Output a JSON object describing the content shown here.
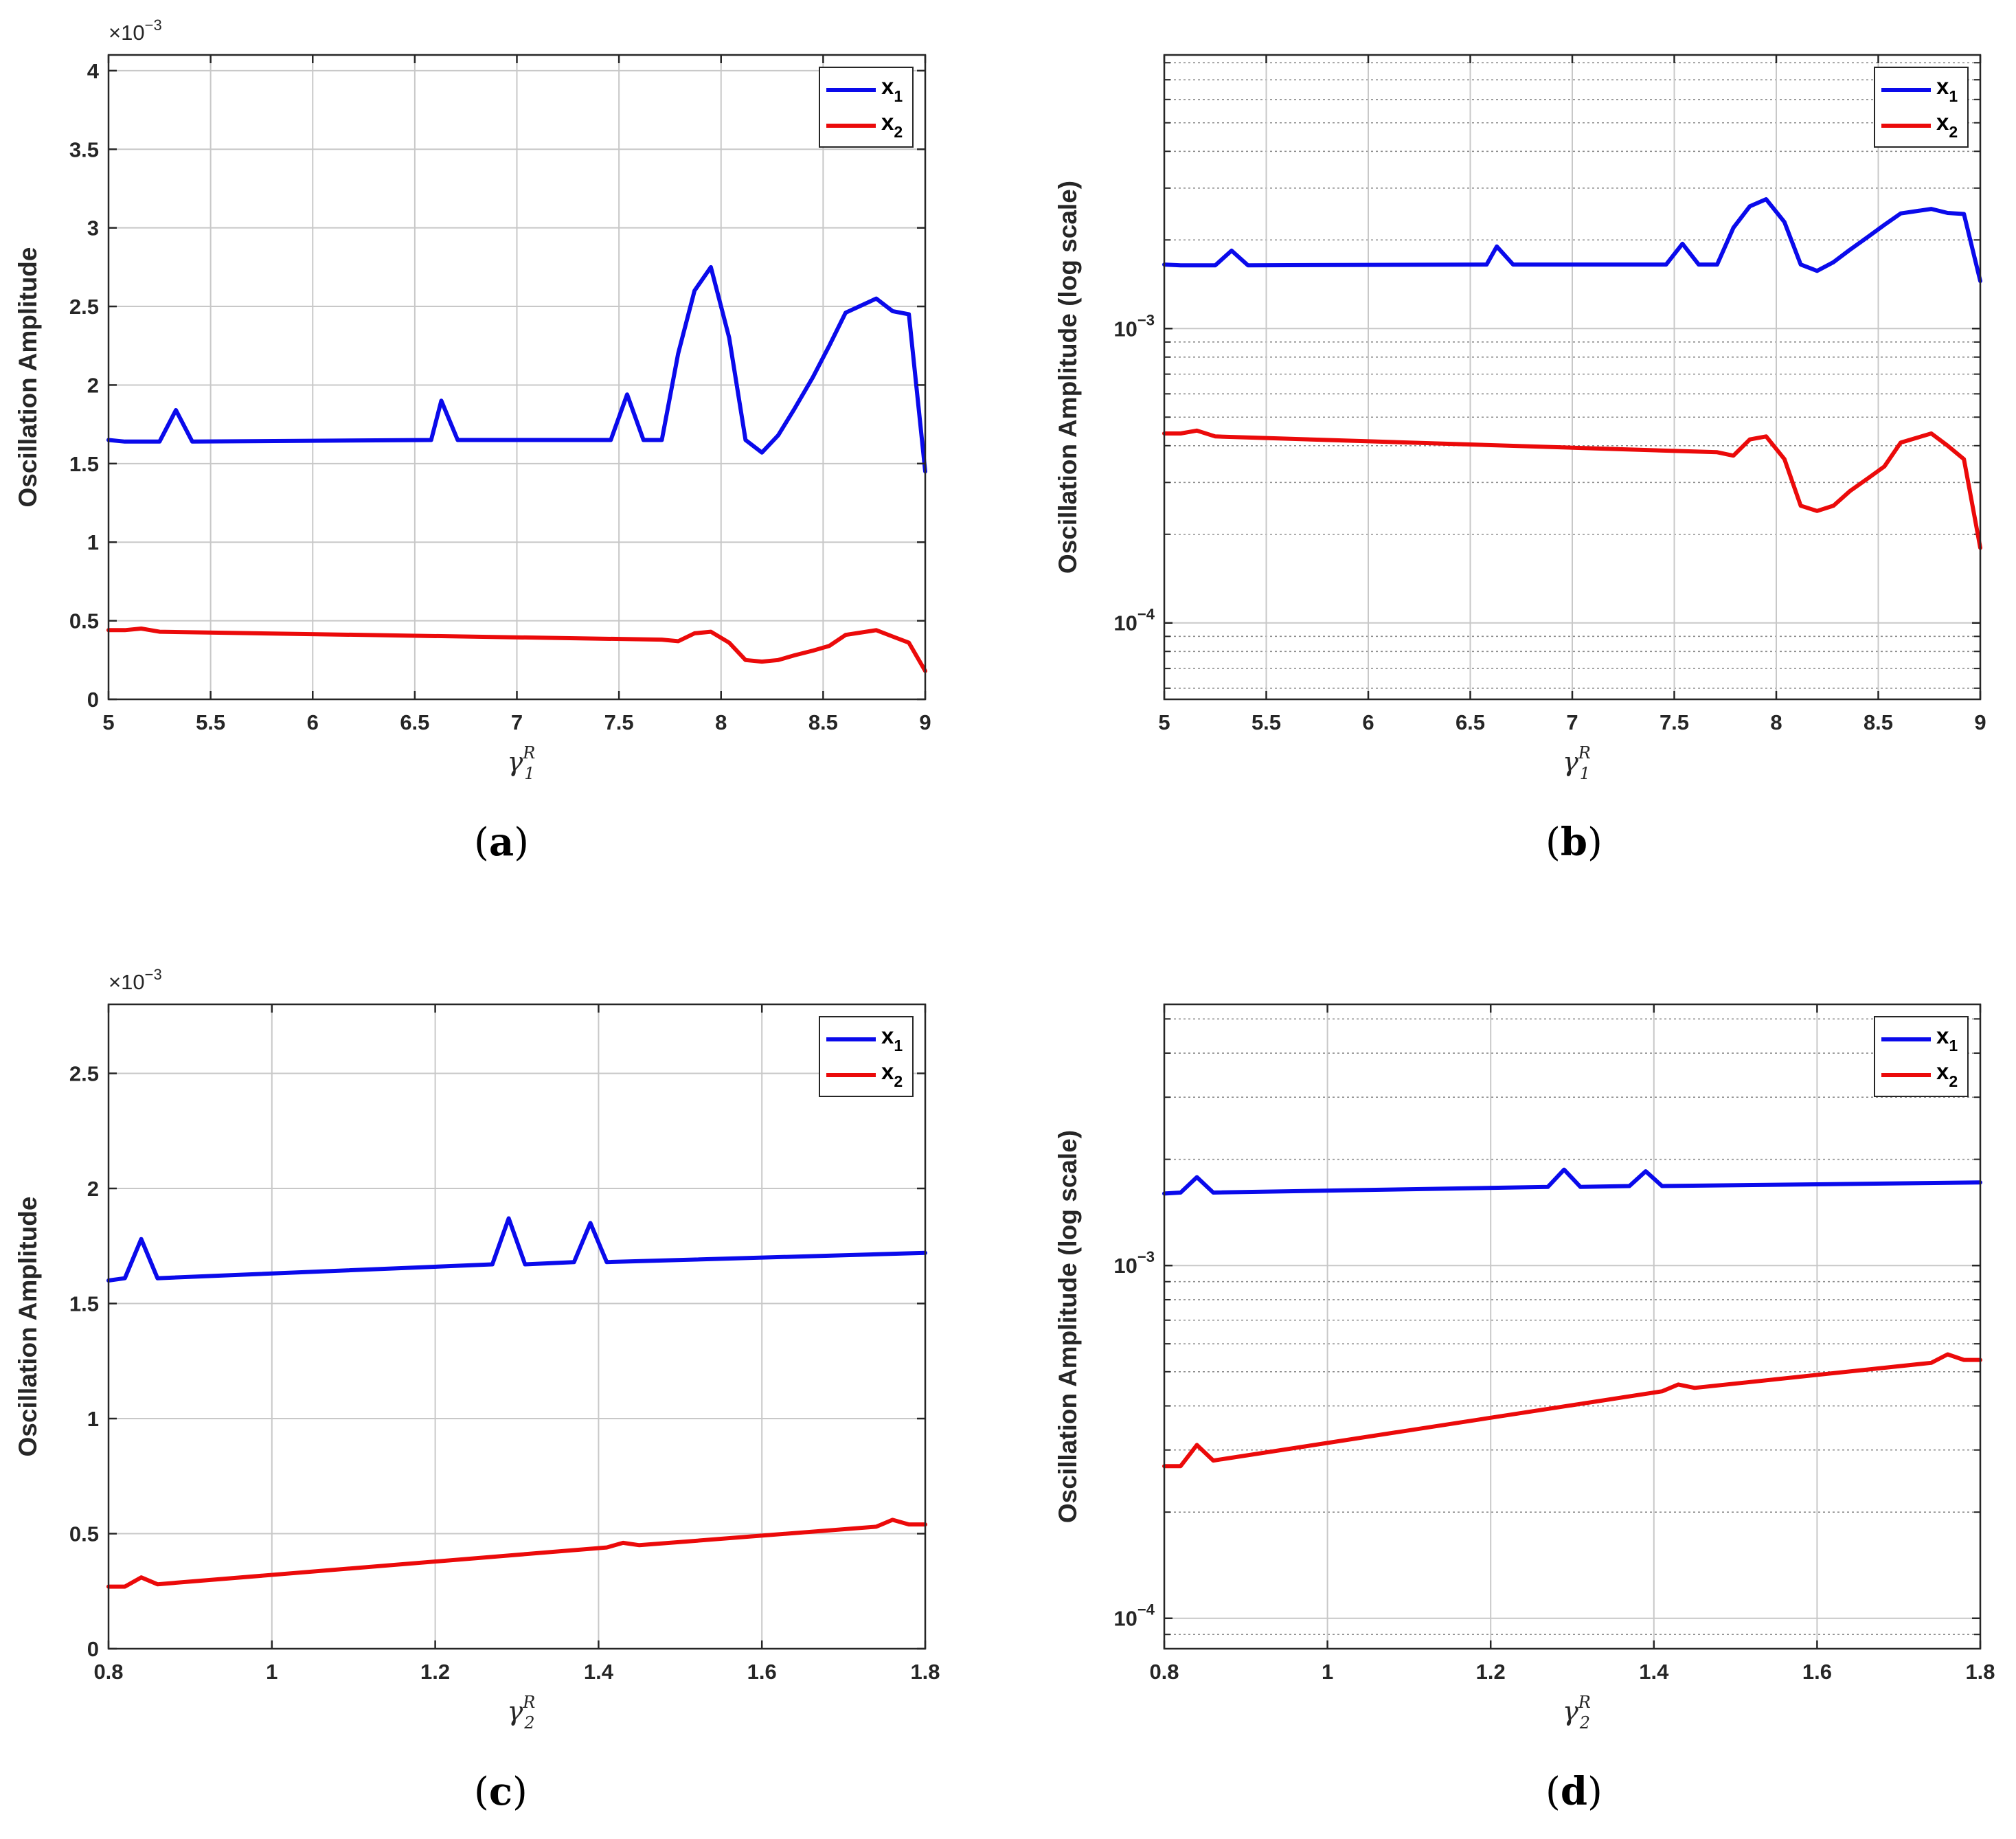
{
  "colors": {
    "x1": "#0a0aeb",
    "x2": "#eb0a0a",
    "grid": "#c8c8c8",
    "minor_grid": "#8c8c8c",
    "axis": "#262626"
  },
  "chart_data": [
    {
      "id": "a",
      "type": "line",
      "caption_prefix": "(",
      "caption_letter": "a",
      "caption_suffix": ")",
      "ylabel": "Oscillation Amplitude",
      "xlabel_base": "γ",
      "xlabel_sup": "R",
      "xlabel_sub": "1",
      "yscale": "linear",
      "exponent_prefix": "×10",
      "exponent_power": "−3",
      "xlim": [
        5,
        9
      ],
      "ylim": [
        0,
        4.1
      ],
      "xticks": [
        5,
        5.5,
        6,
        6.5,
        7,
        7.5,
        8,
        8.5,
        9
      ],
      "xticklabels": [
        "5",
        "5.5",
        "6",
        "6.5",
        "7",
        "7.5",
        "8",
        "8.5",
        "9"
      ],
      "yticks": [
        0,
        0.5,
        1,
        1.5,
        2,
        2.5,
        3,
        3.5,
        4
      ],
      "yticklabels": [
        "0",
        "0.5",
        "1",
        "1.5",
        "2",
        "2.5",
        "3",
        "3.5",
        "4"
      ],
      "minor_yticks": [],
      "grid": true,
      "legend_position": "top-right",
      "series": [
        {
          "name_base": "x",
          "name_sub": "1",
          "color_key": "x1",
          "x": [
            5.0,
            5.08,
            5.25,
            5.33,
            5.41,
            6.58,
            6.63,
            6.71,
            7.46,
            7.54,
            7.62,
            7.71,
            7.79,
            7.87,
            7.95,
            8.04,
            8.12,
            8.2,
            8.28,
            8.36,
            8.45,
            8.53,
            8.61,
            8.76,
            8.84,
            8.92,
            9.0
          ],
          "y": [
            1.65,
            1.64,
            1.64,
            1.84,
            1.64,
            1.65,
            1.9,
            1.65,
            1.65,
            1.94,
            1.65,
            1.65,
            2.2,
            2.6,
            2.75,
            2.3,
            1.65,
            1.57,
            1.68,
            1.85,
            2.05,
            2.25,
            2.46,
            2.55,
            2.47,
            2.45,
            1.45
          ]
        },
        {
          "name_base": "x",
          "name_sub": "2",
          "color_key": "x2",
          "x": [
            5.0,
            5.08,
            5.16,
            5.25,
            7.71,
            7.79,
            7.87,
            7.95,
            8.04,
            8.12,
            8.2,
            8.28,
            8.36,
            8.45,
            8.53,
            8.61,
            8.76,
            8.84,
            8.92,
            9.0
          ],
          "y": [
            0.44,
            0.44,
            0.45,
            0.43,
            0.38,
            0.37,
            0.42,
            0.43,
            0.36,
            0.25,
            0.24,
            0.25,
            0.28,
            0.31,
            0.34,
            0.41,
            0.44,
            0.4,
            0.36,
            0.18
          ]
        }
      ]
    },
    {
      "id": "b",
      "type": "line",
      "caption_prefix": "(",
      "caption_letter": "b",
      "caption_suffix": ")",
      "ylabel": "Oscillation Amplitude (log scale)",
      "xlabel_base": "γ",
      "xlabel_sup": "R",
      "xlabel_sub": "1",
      "yscale": "log",
      "exponent_prefix": "",
      "exponent_power": "",
      "xlim": [
        5,
        9
      ],
      "ylim": [
        5.5e-05,
        0.0085
      ],
      "xticks": [
        5,
        5.5,
        6,
        6.5,
        7,
        7.5,
        8,
        8.5,
        9
      ],
      "xticklabels": [
        "5",
        "5.5",
        "6",
        "6.5",
        "7",
        "7.5",
        "8",
        "8.5",
        "9"
      ],
      "yticks": [
        0.0001,
        0.001
      ],
      "yticklabels": [
        [
          "10",
          "−4"
        ],
        [
          "10",
          "−3"
        ]
      ],
      "minor_yticks": [
        6e-05,
        7e-05,
        8e-05,
        9e-05,
        0.0002,
        0.0003,
        0.0004,
        0.0005,
        0.0006,
        0.0007,
        0.0008,
        0.0009,
        0.002,
        0.003,
        0.004,
        0.005,
        0.006,
        0.007,
        0.008
      ],
      "grid": true,
      "legend_position": "top-right",
      "series": [
        {
          "name_base": "x",
          "name_sub": "1",
          "color_key": "x1",
          "x": [
            5.0,
            5.08,
            5.25,
            5.33,
            5.41,
            6.58,
            6.63,
            6.71,
            7.46,
            7.54,
            7.62,
            7.71,
            7.79,
            7.87,
            7.95,
            8.04,
            8.12,
            8.2,
            8.28,
            8.36,
            8.45,
            8.53,
            8.61,
            8.76,
            8.84,
            8.92,
            9.0
          ],
          "y": [
            0.00165,
            0.00164,
            0.00164,
            0.00184,
            0.00164,
            0.00165,
            0.0019,
            0.00165,
            0.00165,
            0.00194,
            0.00165,
            0.00165,
            0.0022,
            0.0026,
            0.00275,
            0.0023,
            0.00165,
            0.00157,
            0.00168,
            0.00185,
            0.00205,
            0.00225,
            0.00246,
            0.00255,
            0.00247,
            0.00245,
            0.00145
          ]
        },
        {
          "name_base": "x",
          "name_sub": "2",
          "color_key": "x2",
          "x": [
            5.0,
            5.08,
            5.16,
            5.25,
            7.71,
            7.79,
            7.87,
            7.95,
            8.04,
            8.12,
            8.2,
            8.28,
            8.36,
            8.45,
            8.53,
            8.61,
            8.76,
            8.84,
            8.92,
            9.0
          ],
          "y": [
            0.00044,
            0.00044,
            0.00045,
            0.00043,
            0.00038,
            0.00037,
            0.00042,
            0.00043,
            0.00036,
            0.00025,
            0.00024,
            0.00025,
            0.00028,
            0.00031,
            0.00034,
            0.00041,
            0.00044,
            0.0004,
            0.00036,
            0.00018
          ]
        }
      ]
    },
    {
      "id": "c",
      "type": "line",
      "caption_prefix": "(",
      "caption_letter": "c",
      "caption_suffix": ")",
      "ylabel": "Oscillation Amplitude",
      "xlabel_base": "γ",
      "xlabel_sup": "R",
      "xlabel_sub": "2",
      "yscale": "linear",
      "exponent_prefix": "×10",
      "exponent_power": "−3",
      "xlim": [
        0.8,
        1.8
      ],
      "ylim": [
        0,
        2.8
      ],
      "xticks": [
        0.8,
        1.0,
        1.2,
        1.4,
        1.6,
        1.8
      ],
      "xticklabels": [
        "0.8",
        "1",
        "1.2",
        "1.4",
        "1.6",
        "1.8"
      ],
      "yticks": [
        0,
        0.5,
        1,
        1.5,
        2,
        2.5
      ],
      "yticklabels": [
        "0",
        "0.5",
        "1",
        "1.5",
        "2",
        "2.5"
      ],
      "minor_yticks": [],
      "grid": true,
      "legend_position": "top-right",
      "series": [
        {
          "name_base": "x",
          "name_sub": "1",
          "color_key": "x1",
          "x": [
            0.8,
            0.82,
            0.84,
            0.86,
            1.27,
            1.29,
            1.31,
            1.37,
            1.39,
            1.41,
            1.8
          ],
          "y": [
            1.6,
            1.61,
            1.78,
            1.61,
            1.67,
            1.87,
            1.67,
            1.68,
            1.85,
            1.68,
            1.72
          ]
        },
        {
          "name_base": "x",
          "name_sub": "2",
          "color_key": "x2",
          "x": [
            0.8,
            0.82,
            0.84,
            0.86,
            1.41,
            1.43,
            1.45,
            1.74,
            1.76,
            1.78,
            1.8
          ],
          "y": [
            0.27,
            0.27,
            0.31,
            0.28,
            0.44,
            0.46,
            0.45,
            0.53,
            0.56,
            0.54,
            0.54
          ]
        }
      ]
    },
    {
      "id": "d",
      "type": "line",
      "caption_prefix": "(",
      "caption_letter": "d",
      "caption_suffix": ")",
      "ylabel": "Oscillation Amplitude (log scale)",
      "xlabel_base": "γ",
      "xlabel_sup": "R",
      "xlabel_sub": "2",
      "yscale": "log",
      "exponent_prefix": "",
      "exponent_power": "",
      "xlim": [
        0.8,
        1.8
      ],
      "ylim": [
        8.2e-05,
        0.0055
      ],
      "xticks": [
        0.8,
        1.0,
        1.2,
        1.4,
        1.6,
        1.8
      ],
      "xticklabels": [
        "0.8",
        "1",
        "1.2",
        "1.4",
        "1.6",
        "1.8"
      ],
      "yticks": [
        0.0001,
        0.001
      ],
      "yticklabels": [
        [
          "10",
          "−4"
        ],
        [
          "10",
          "−3"
        ]
      ],
      "minor_yticks": [
        9e-05,
        0.0002,
        0.0003,
        0.0004,
        0.0005,
        0.0006,
        0.0007,
        0.0008,
        0.0009,
        0.002,
        0.003,
        0.004,
        0.005
      ],
      "grid": true,
      "legend_position": "top-right",
      "series": [
        {
          "name_base": "x",
          "name_sub": "1",
          "color_key": "x1",
          "x": [
            0.8,
            0.82,
            0.84,
            0.86,
            1.27,
            1.29,
            1.31,
            1.37,
            1.39,
            1.41,
            1.8
          ],
          "y": [
            0.0016,
            0.00161,
            0.00178,
            0.00161,
            0.00167,
            0.00187,
            0.00167,
            0.00168,
            0.00185,
            0.00168,
            0.00172
          ]
        },
        {
          "name_base": "x",
          "name_sub": "2",
          "color_key": "x2",
          "x": [
            0.8,
            0.82,
            0.84,
            0.86,
            1.41,
            1.43,
            1.45,
            1.74,
            1.76,
            1.78,
            1.8
          ],
          "y": [
            0.00027,
            0.00027,
            0.00031,
            0.00028,
            0.00044,
            0.00046,
            0.00045,
            0.00053,
            0.00056,
            0.00054,
            0.00054
          ]
        }
      ]
    }
  ]
}
